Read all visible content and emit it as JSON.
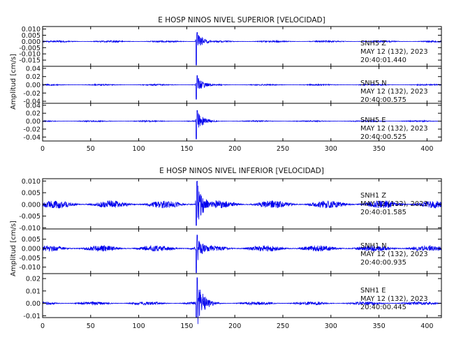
{
  "colors": {
    "trace": "#0000ee",
    "axis": "#000000",
    "background": "#ffffff"
  },
  "chart_data": [
    {
      "type": "line",
      "title": "E HOSP NINOS NIVEL SUPERIOR [VELOCIDAD]",
      "ylabel": "Amplitud [cm/s]",
      "xlabel": "",
      "xlim": [
        0,
        415
      ],
      "xticks": [
        0,
        50,
        100,
        150,
        200,
        250,
        300,
        350,
        400
      ],
      "event_time_s": 160,
      "grid": false,
      "channels": [
        {
          "station": "SNH5",
          "component": "Z",
          "date": "MAY 12 (132), 2023",
          "time": "20:40:01.440",
          "ylim": [
            -0.02,
            0.012
          ],
          "yticks": [
            0.01,
            0.005,
            0.0,
            -0.005,
            -0.01,
            -0.015
          ],
          "ytick_labels": [
            "0.010",
            "0.005",
            "0.000",
            "-0.005",
            "-0.010",
            "-0.015"
          ],
          "noise_amp": 0.0006,
          "peak_amp": 0.008,
          "neg_peak_amp": 0.019
        },
        {
          "station": "SNH5",
          "component": "N",
          "date": "MAY 12 (132), 2023",
          "time": "20:40:00.575",
          "ylim": [
            -0.045,
            0.045
          ],
          "yticks": [
            0.04,
            0.02,
            0.0,
            -0.02,
            -0.04
          ],
          "ytick_labels": [
            "0.04",
            "0.02",
            "0.00",
            "-0.02",
            "-0.04"
          ],
          "noise_amp": 0.0015,
          "peak_amp": 0.025,
          "neg_peak_amp": 0.035
        },
        {
          "station": "SNH5",
          "component": "E",
          "date": "MAY 12 (132), 2023",
          "time": "20:40:00.525",
          "ylim": [
            -0.05,
            0.045
          ],
          "yticks": [
            0.04,
            0.02,
            0.0,
            -0.02,
            -0.04
          ],
          "ytick_labels": [
            "0.04",
            "0.02",
            "0.00",
            "-0.02",
            "-0.04"
          ],
          "noise_amp": 0.0015,
          "peak_amp": 0.03,
          "neg_peak_amp": 0.045
        }
      ]
    },
    {
      "type": "line",
      "title": "E HOSP NINOS NIVEL INFERIOR [VELOCIDAD]",
      "ylabel": "Amplitud [cm/s]",
      "xlabel": "",
      "xlim": [
        0,
        415
      ],
      "xticks": [
        0,
        50,
        100,
        150,
        200,
        250,
        300,
        350,
        400
      ],
      "event_time_s": 160,
      "grid": false,
      "channels": [
        {
          "station": "SNH1",
          "component": "Z",
          "date": "MAY 12 (132), 2023",
          "time": "20:40:01.585",
          "ylim": [
            -0.0105,
            0.011
          ],
          "yticks": [
            0.01,
            0.005,
            0.0,
            -0.005,
            -0.01
          ],
          "ytick_labels": [
            "0.010",
            "0.005",
            "0.000",
            "-0.005",
            "-0.010"
          ],
          "noise_amp": 0.0015,
          "peak_amp": 0.011,
          "neg_peak_amp": 0.009
        },
        {
          "station": "SNH1",
          "component": "N",
          "date": "MAY 12 (132), 2023",
          "time": "20:40:00.935",
          "ylim": [
            -0.0135,
            0.0105
          ],
          "yticks": [
            0.005,
            0.0,
            -0.005,
            -0.01
          ],
          "ytick_labels": [
            "0.005",
            "0.000",
            "-0.005",
            "-0.010"
          ],
          "noise_amp": 0.0015,
          "peak_amp": 0.008,
          "neg_peak_amp": 0.013
        },
        {
          "station": "SNH1",
          "component": "E",
          "date": "MAY 12 (132), 2023",
          "time": "20:40:00.445",
          "ylim": [
            -0.0115,
            0.024
          ],
          "yticks": [
            0.02,
            0.01,
            0.0,
            -0.01
          ],
          "ytick_labels": [
            "0.02",
            "0.01",
            "0.00",
            "-0.01"
          ],
          "noise_amp": 0.0012,
          "peak_amp": 0.023,
          "neg_peak_amp": 0.011
        }
      ]
    }
  ]
}
